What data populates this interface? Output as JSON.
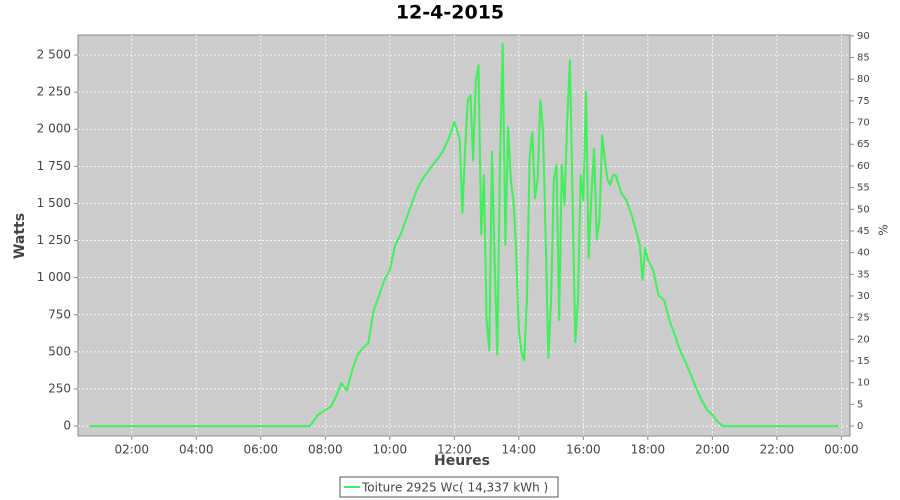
{
  "chart_data": {
    "type": "line",
    "title": "12-4-2015",
    "x_label": "Heures",
    "y_label": "Watts",
    "y2_label": "%",
    "xlim": [
      20,
      1456
    ],
    "xticks": [
      {
        "value": 120,
        "label": "02:00"
      },
      {
        "value": 240,
        "label": "04:00"
      },
      {
        "value": 360,
        "label": "06:00"
      },
      {
        "value": 480,
        "label": "08:00"
      },
      {
        "value": 600,
        "label": "10:00"
      },
      {
        "value": 720,
        "label": "12:00"
      },
      {
        "value": 840,
        "label": "14:00"
      },
      {
        "value": 960,
        "label": "16:00"
      },
      {
        "value": 1080,
        "label": "18:00"
      },
      {
        "value": 1200,
        "label": "20:00"
      },
      {
        "value": 1320,
        "label": "22:00"
      },
      {
        "value": 1440,
        "label": "00:00"
      }
    ],
    "ylim": [
      -67,
      2635
    ],
    "yticks": [
      0,
      250,
      500,
      750,
      {
        "value": 1000,
        "label": "1 000"
      },
      {
        "value": 1250,
        "label": "1 250"
      },
      {
        "value": 1500,
        "label": "1 500"
      },
      {
        "value": 1750,
        "label": "1 750"
      },
      {
        "value": 2000,
        "label": "2 000"
      },
      {
        "value": 2250,
        "label": "2 250"
      },
      {
        "value": 2500,
        "label": "2 500"
      }
    ],
    "y2lim": [
      -2.3,
      90.2
    ],
    "y2ticks": [
      0,
      5,
      10,
      15,
      20,
      25,
      30,
      35,
      40,
      45,
      50,
      55,
      60,
      65,
      70,
      75,
      80,
      85,
      90
    ],
    "grid": true,
    "series": [
      {
        "name": "Toiture 2925 Wc( 14,337 kWh )",
        "color": "#3ef05a",
        "x": [
          42,
          451,
          466,
          480,
          490,
          500,
          510,
          520,
          530,
          540,
          550,
          560,
          570,
          580,
          590,
          600,
          610,
          620,
          630,
          640,
          650,
          660,
          670,
          680,
          690,
          700,
          710,
          720,
          725,
          730,
          735,
          740,
          745,
          750,
          755,
          760,
          765,
          770,
          775,
          780,
          785,
          790,
          795,
          800,
          805,
          810,
          815,
          820,
          825,
          830,
          835,
          840,
          845,
          850,
          855,
          860,
          865,
          870,
          875,
          880,
          885,
          890,
          895,
          900,
          905,
          910,
          915,
          920,
          925,
          930,
          935,
          940,
          945,
          950,
          955,
          960,
          965,
          970,
          975,
          980,
          985,
          990,
          995,
          1000,
          1005,
          1010,
          1015,
          1020,
          1030,
          1040,
          1050,
          1060,
          1065,
          1070,
          1075,
          1080,
          1090,
          1100,
          1110,
          1120,
          1130,
          1140,
          1150,
          1160,
          1170,
          1180,
          1190,
          1200,
          1210,
          1220,
          1435
        ],
        "values": [
          0,
          0,
          74,
          108,
          130,
          200,
          290,
          240,
          377,
          480,
          525,
          560,
          780,
          880,
          985,
          1050,
          1220,
          1290,
          1390,
          1490,
          1590,
          1660,
          1710,
          1760,
          1805,
          1860,
          1940,
          2050,
          1995,
          1930,
          1435,
          1860,
          2195,
          2230,
          1790,
          2330,
          2430,
          1290,
          1690,
          715,
          510,
          1850,
          1120,
          480,
          1790,
          2575,
          1220,
          2015,
          1660,
          1520,
          1190,
          650,
          500,
          445,
          850,
          1805,
          1980,
          1535,
          1660,
          2195,
          1995,
          1255,
          460,
          850,
          1660,
          1760,
          715,
          1760,
          1490,
          2060,
          2465,
          1520,
          565,
          850,
          1690,
          1520,
          2250,
          1130,
          1555,
          1870,
          1255,
          1390,
          1960,
          1790,
          1660,
          1625,
          1690,
          1690,
          1575,
          1520,
          1420,
          1290,
          1220,
          985,
          1200,
          1120,
          1050,
          880,
          850,
          715,
          615,
          510,
          430,
          345,
          255,
          175,
          110,
          75,
          27,
          0,
          0
        ]
      }
    ]
  }
}
